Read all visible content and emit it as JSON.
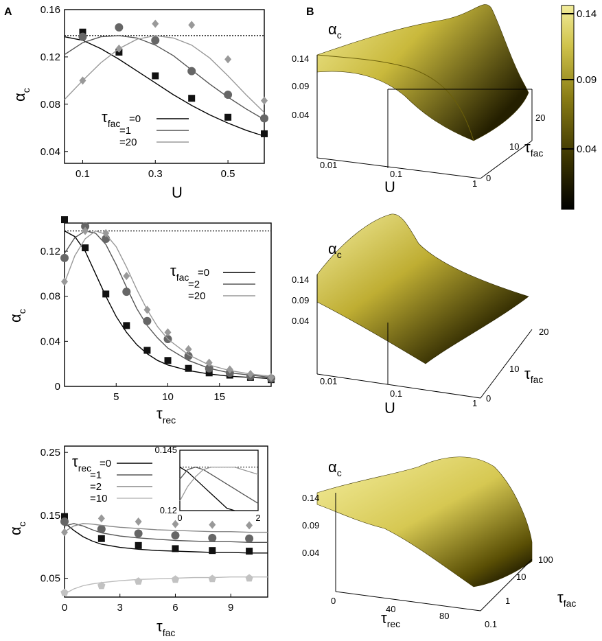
{
  "panel_letters": {
    "a": "A",
    "b": "B"
  },
  "colors": {
    "black": "#000000",
    "dark_gray": "#555555",
    "mid_gray": "#888888",
    "light_gray": "#bbbbbb",
    "marker_black": "#111111",
    "marker_dark": "#666666",
    "marker_mid": "#999999",
    "marker_light": "#c2c2c2"
  },
  "labels": {
    "alpha": "α",
    "alpha_sub": "c",
    "tau": "τ",
    "fac_sub": "fac",
    "rec_sub": "rec",
    "U": "U",
    "eq0": "=0",
    "eq1": "=1",
    "eq2": "=2",
    "eq10": "=10",
    "eq20": "=20"
  },
  "chart_data": [
    {
      "id": "A1",
      "type": "line",
      "xlabel": "U",
      "ylabel": "α_c",
      "xlim": [
        0.05,
        0.6
      ],
      "ylim": [
        0.03,
        0.16
      ],
      "xticks": [
        "0.1",
        "0.3",
        "0.5"
      ],
      "yticks": [
        "0.04",
        "0.08",
        "0.12",
        "0.16"
      ],
      "reference_line": 0.138,
      "legend": {
        "title": "τ_fac",
        "entries": [
          "=0",
          "=1",
          "=20"
        ]
      },
      "series": [
        {
          "name": "τ_fac=0",
          "color": "#000000",
          "marker": "square",
          "curve": {
            "x": [
              0.05,
              0.1,
              0.15,
              0.2,
              0.25,
              0.3,
              0.35,
              0.4,
              0.45,
              0.5,
              0.55,
              0.6
            ],
            "y": [
              0.137,
              0.134,
              0.127,
              0.118,
              0.108,
              0.098,
              0.088,
              0.079,
              0.071,
              0.064,
              0.058,
              0.053
            ]
          },
          "points": {
            "x": [
              0.1,
              0.2,
              0.3,
              0.4,
              0.5,
              0.6
            ],
            "y": [
              0.141,
              0.124,
              0.104,
              0.085,
              0.069,
              0.055
            ]
          }
        },
        {
          "name": "τ_fac=1",
          "color": "#555555",
          "marker": "circle",
          "curve": {
            "x": [
              0.05,
              0.1,
              0.15,
              0.2,
              0.25,
              0.3,
              0.35,
              0.4,
              0.45,
              0.5,
              0.55,
              0.6
            ],
            "y": [
              0.122,
              0.132,
              0.137,
              0.138,
              0.136,
              0.13,
              0.121,
              0.109,
              0.097,
              0.086,
              0.076,
              0.067
            ]
          },
          "points": {
            "x": [
              0.1,
              0.2,
              0.3,
              0.4,
              0.5,
              0.6
            ],
            "y": [
              0.137,
              0.145,
              0.134,
              0.108,
              0.088,
              0.068
            ]
          }
        },
        {
          "name": "τ_fac=20",
          "color": "#999999",
          "marker": "diamond",
          "curve": {
            "x": [
              0.05,
              0.1,
              0.15,
              0.2,
              0.25,
              0.3,
              0.35,
              0.4,
              0.45,
              0.5,
              0.55,
              0.6
            ],
            "y": [
              0.084,
              0.1,
              0.115,
              0.127,
              0.135,
              0.138,
              0.136,
              0.13,
              0.119,
              0.104,
              0.088,
              0.073
            ]
          },
          "points": {
            "x": [
              0.1,
              0.2,
              0.3,
              0.4,
              0.5,
              0.6
            ],
            "y": [
              0.1,
              0.127,
              0.148,
              0.147,
              0.118,
              0.083
            ]
          }
        }
      ]
    },
    {
      "id": "A2",
      "type": "line",
      "xlabel": "τ_rec",
      "ylabel": "α_c",
      "xlim": [
        0,
        20
      ],
      "ylim": [
        0,
        0.145
      ],
      "xticks": [
        "5",
        "10",
        "15"
      ],
      "yticks": [
        "0",
        "0.04",
        "0.08",
        "0.12"
      ],
      "reference_line": 0.138,
      "legend": {
        "title": "τ_fac",
        "entries": [
          "=0",
          "=2",
          "=20"
        ]
      },
      "series": [
        {
          "name": "τ_fac=0",
          "color": "#000000",
          "marker": "square",
          "curve": {
            "x": [
              0,
              1,
              2,
              3,
              4,
              5,
              6,
              7,
              8,
              9,
              10,
              12,
              14,
              16,
              18,
              20
            ],
            "y": [
              0.138,
              0.133,
              0.12,
              0.1,
              0.08,
              0.062,
              0.048,
              0.037,
              0.029,
              0.023,
              0.019,
              0.014,
              0.011,
              0.009,
              0.008,
              0.007
            ]
          },
          "points": {
            "x": [
              0,
              2,
              4,
              6,
              8,
              10,
              12,
              14,
              16,
              18,
              20
            ],
            "y": [
              0.148,
              0.123,
              0.082,
              0.054,
              0.032,
              0.023,
              0.016,
              0.012,
              0.01,
              0.008,
              0.006
            ]
          }
        },
        {
          "name": "τ_fac=2",
          "color": "#555555",
          "marker": "circle",
          "curve": {
            "x": [
              0,
              1,
              2,
              3,
              4,
              5,
              6,
              7,
              8,
              9,
              10,
              12,
              14,
              16,
              18,
              20
            ],
            "y": [
              0.118,
              0.132,
              0.138,
              0.136,
              0.126,
              0.108,
              0.088,
              0.069,
              0.054,
              0.043,
              0.034,
              0.023,
              0.016,
              0.012,
              0.01,
              0.008
            ]
          },
          "points": {
            "x": [
              0,
              2,
              4,
              6,
              8,
              10,
              12,
              14,
              16,
              18,
              20
            ],
            "y": [
              0.114,
              0.142,
              0.131,
              0.084,
              0.058,
              0.042,
              0.027,
              0.016,
              0.012,
              0.009,
              0.007
            ]
          }
        },
        {
          "name": "τ_fac=20",
          "color": "#999999",
          "marker": "diamond",
          "curve": {
            "x": [
              0,
              1,
              2,
              3,
              4,
              5,
              6,
              7,
              8,
              9,
              10,
              12,
              14,
              16,
              18,
              20
            ],
            "y": [
              0.092,
              0.116,
              0.131,
              0.138,
              0.135,
              0.124,
              0.106,
              0.086,
              0.068,
              0.053,
              0.042,
              0.028,
              0.019,
              0.014,
              0.011,
              0.009
            ]
          },
          "points": {
            "x": [
              0,
              2,
              4,
              6,
              8,
              10,
              12,
              14,
              16,
              18,
              20
            ],
            "y": [
              0.093,
              0.138,
              0.136,
              0.098,
              0.068,
              0.048,
              0.033,
              0.021,
              0.015,
              0.011,
              0.008
            ]
          }
        }
      ]
    },
    {
      "id": "A3",
      "type": "line",
      "xlabel": "τ_fac",
      "ylabel": "α_c",
      "xlim": [
        0,
        11
      ],
      "ylim": [
        0.02,
        0.26
      ],
      "xticks": [
        "0",
        "3",
        "6",
        "9"
      ],
      "yticks": [
        "0.05",
        "0.15",
        "0.25"
      ],
      "legend": {
        "title": "τ_rec",
        "entries": [
          "=0",
          "=1",
          "=2",
          "=10"
        ]
      },
      "series": [
        {
          "name": "τ_rec=0",
          "color": "#000000",
          "marker": "square",
          "curve": {
            "x": [
              0,
              0.5,
              1,
              1.5,
              2,
              3,
              4,
              5,
              6,
              7,
              8,
              9,
              10,
              11
            ],
            "y": [
              0.138,
              0.126,
              0.116,
              0.109,
              0.104,
              0.099,
              0.096,
              0.094,
              0.093,
              0.092,
              0.091,
              0.091,
              0.09,
              0.09
            ]
          },
          "points": {
            "x": [
              0,
              2,
              4,
              6,
              8,
              10
            ],
            "y": [
              0.148,
              0.113,
              0.102,
              0.097,
              0.094,
              0.093
            ]
          }
        },
        {
          "name": "τ_rec=1",
          "color": "#555555",
          "marker": "circle",
          "curve": {
            "x": [
              0,
              0.5,
              1,
              1.5,
              2,
              3,
              4,
              5,
              6,
              7,
              8,
              9,
              10,
              11
            ],
            "y": [
              0.133,
              0.137,
              0.133,
              0.127,
              0.122,
              0.117,
              0.114,
              0.112,
              0.11,
              0.109,
              0.108,
              0.108,
              0.107,
              0.107
            ]
          },
          "points": {
            "x": [
              0,
              2,
              4,
              6,
              8,
              10
            ],
            "y": [
              0.14,
              0.128,
              0.121,
              0.118,
              0.114,
              0.113
            ]
          }
        },
        {
          "name": "τ_rec=2",
          "color": "#888888",
          "marker": "diamond",
          "curve": {
            "x": [
              0,
              0.5,
              1,
              1.5,
              2,
              3,
              4,
              5,
              6,
              7,
              8,
              9,
              10,
              11
            ],
            "y": [
              0.124,
              0.133,
              0.137,
              0.136,
              0.134,
              0.131,
              0.129,
              0.127,
              0.126,
              0.125,
              0.124,
              0.124,
              0.123,
              0.123
            ]
          },
          "points": {
            "x": [
              0,
              2,
              4,
              6,
              8,
              10
            ],
            "y": [
              0.123,
              0.145,
              0.14,
              0.136,
              0.135,
              0.134
            ]
          }
        },
        {
          "name": "τ_rec=10",
          "color": "#bbbbbb",
          "marker": "pentagon",
          "curve": {
            "x": [
              0,
              0.5,
              1,
              1.5,
              2,
              3,
              4,
              5,
              6,
              7,
              8,
              9,
              10,
              11
            ],
            "y": [
              0.025,
              0.033,
              0.038,
              0.041,
              0.043,
              0.046,
              0.048,
              0.049,
              0.05,
              0.051,
              0.051,
              0.052,
              0.052,
              0.052
            ]
          },
          "points": {
            "x": [
              0,
              2,
              4,
              6,
              8,
              10
            ],
            "y": [
              0.027,
              0.038,
              0.045,
              0.048,
              0.049,
              0.05
            ]
          }
        }
      ],
      "inset": {
        "xlim": [
          0,
          2
        ],
        "ylim": [
          0.12,
          0.145
        ],
        "xticks": [
          "0",
          "2"
        ],
        "yticks": [
          "0.12",
          "0.145"
        ],
        "reference_line": 0.138,
        "series": [
          {
            "name": "τ_rec=0",
            "color": "#000000",
            "x": [
              0,
              0.2,
              0.4,
              0.6,
              0.8,
              1.0,
              1.2,
              1.4
            ],
            "y": [
              0.138,
              0.136,
              0.133,
              0.13,
              0.127,
              0.124,
              0.121,
              0.118
            ]
          },
          {
            "name": "τ_rec=1",
            "color": "#555555",
            "x": [
              0,
              0.2,
              0.4,
              0.6,
              0.8,
              1.0,
              1.2,
              1.4,
              1.6,
              1.8,
              2.0
            ],
            "y": [
              0.133,
              0.137,
              0.138,
              0.137,
              0.135,
              0.133,
              0.131,
              0.129,
              0.127,
              0.125,
              0.123
            ]
          },
          {
            "name": "τ_rec=2",
            "color": "#999999",
            "x": [
              0,
              0.2,
              0.4,
              0.6,
              0.8,
              1.0,
              1.2,
              1.4,
              1.6,
              1.8,
              2.0
            ],
            "y": [
              0.124,
              0.13,
              0.134,
              0.137,
              0.138,
              0.138,
              0.138,
              0.138,
              0.137,
              0.136,
              0.135
            ]
          }
        ]
      }
    },
    {
      "id": "B1",
      "type": "surface",
      "zlabel": "α_c",
      "xlabel": "U",
      "ylabel": "τ_fac",
      "zticks": [
        "0.14",
        "0.09",
        "0.04"
      ],
      "xticks": [
        "0.01",
        "0.1",
        "1"
      ],
      "yticks": [
        "0",
        "10",
        "20"
      ],
      "colorbar": {
        "ticks": [
          "0.14",
          "0.09",
          "0.04"
        ],
        "range": [
          0.0,
          0.145
        ]
      }
    },
    {
      "id": "B2",
      "type": "surface",
      "zlabel": "α_c",
      "xlabel": "U",
      "ylabel": "τ_fac",
      "zticks": [
        "0.14",
        "0.09",
        "0.04"
      ],
      "xticks": [
        "0.01",
        "0.1",
        "1"
      ],
      "yticks": [
        "0",
        "10",
        "20"
      ]
    },
    {
      "id": "B3",
      "type": "surface",
      "zlabel": "α_c",
      "xlabel": "τ_rec",
      "ylabel": "τ_fac",
      "zticks": [
        "0.14",
        "0.09",
        "0.04"
      ],
      "xticks": [
        "0",
        "40",
        "80"
      ],
      "yticks": [
        "0.1",
        "1",
        "10",
        "100"
      ]
    }
  ]
}
